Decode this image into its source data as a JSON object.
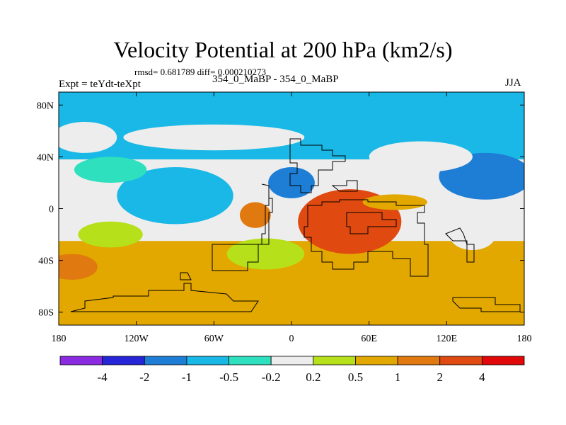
{
  "chart_data": {
    "type": "heatmap",
    "title": "Velocity Potential at 200 hPa (km2/s)",
    "stats_line": "rmsd= 0.681789 diff= 0.000210273",
    "left_label": "Expt = teYdt-teXpt",
    "center_label": "354_0_MaBP - 354_0_MaBP",
    "right_label": "JJA",
    "x_ticks": [
      {
        "value": -180,
        "label": "180"
      },
      {
        "value": -120,
        "label": "120W"
      },
      {
        "value": -60,
        "label": "60W"
      },
      {
        "value": 0,
        "label": "0"
      },
      {
        "value": 60,
        "label": "60E"
      },
      {
        "value": 120,
        "label": "120E"
      },
      {
        "value": 180,
        "label": "180"
      }
    ],
    "y_ticks": [
      {
        "value": 80,
        "label": "80N"
      },
      {
        "value": 40,
        "label": "40N"
      },
      {
        "value": 0,
        "label": "0"
      },
      {
        "value": -40,
        "label": "40S"
      },
      {
        "value": -80,
        "label": "80S"
      }
    ],
    "xlim": [
      -180,
      180
    ],
    "ylim": [
      -90,
      90
    ],
    "colorbar": {
      "labels": [
        "-4",
        "-2",
        "-1",
        "-0.5",
        "-0.2",
        "0.2",
        "0.5",
        "1",
        "2",
        "4"
      ],
      "colors": [
        "#8a2be2",
        "#2626d8",
        "#1e7ed6",
        "#19b8e6",
        "#2ee0bd",
        "#ededed",
        "#b5e01a",
        "#e3a800",
        "#e07a10",
        "#e04a10",
        "#e00808"
      ]
    },
    "field": {
      "background_value": 1.0,
      "bands": [
        {
          "lat_min": 38,
          "lat_max": 90,
          "value": -0.7
        },
        {
          "lat_min": -25,
          "lat_max": 38,
          "value": 0.0
        }
      ],
      "anomalies": [
        {
          "lon": 150,
          "lat": 25,
          "rlon": 36,
          "rlat": 18,
          "value": -1.3
        },
        {
          "lon": 0,
          "lat": 20,
          "rlon": 18,
          "rlat": 12,
          "value": -1.3
        },
        {
          "lon": -90,
          "lat": 10,
          "rlon": 45,
          "rlat": 22,
          "value": -0.7
        },
        {
          "lon": -140,
          "lat": 30,
          "rlon": 28,
          "rlat": 10,
          "value": -0.3
        },
        {
          "lon": -160,
          "lat": 55,
          "rlon": 25,
          "rlat": 12,
          "value": 0.0
        },
        {
          "lon": -60,
          "lat": 55,
          "rlon": 70,
          "rlat": 10,
          "value": 0.0
        },
        {
          "lon": 100,
          "lat": 40,
          "rlon": 40,
          "rlat": 12,
          "value": 0.0
        },
        {
          "lon": 45,
          "lat": -10,
          "rlon": 40,
          "rlat": 25,
          "value": 2.2
        },
        {
          "lon": 35,
          "lat": -15,
          "rlon": 12,
          "rlat": 12,
          "value": 3.0
        },
        {
          "lon": -28,
          "lat": -5,
          "rlon": 12,
          "rlat": 10,
          "value": 1.5
        },
        {
          "lon": -170,
          "lat": -45,
          "rlon": 20,
          "rlat": 10,
          "value": 1.5
        },
        {
          "lon": -140,
          "lat": -20,
          "rlon": 25,
          "rlat": 10,
          "value": 0.35
        },
        {
          "lon": -20,
          "lat": -35,
          "rlon": 30,
          "rlat": 12,
          "value": 0.35
        },
        {
          "lon": 80,
          "lat": 5,
          "rlon": 25,
          "rlat": 6,
          "value": 0.7
        },
        {
          "lon": 140,
          "lat": -20,
          "rlon": 18,
          "rlat": 12,
          "value": 0.0
        }
      ]
    }
  }
}
